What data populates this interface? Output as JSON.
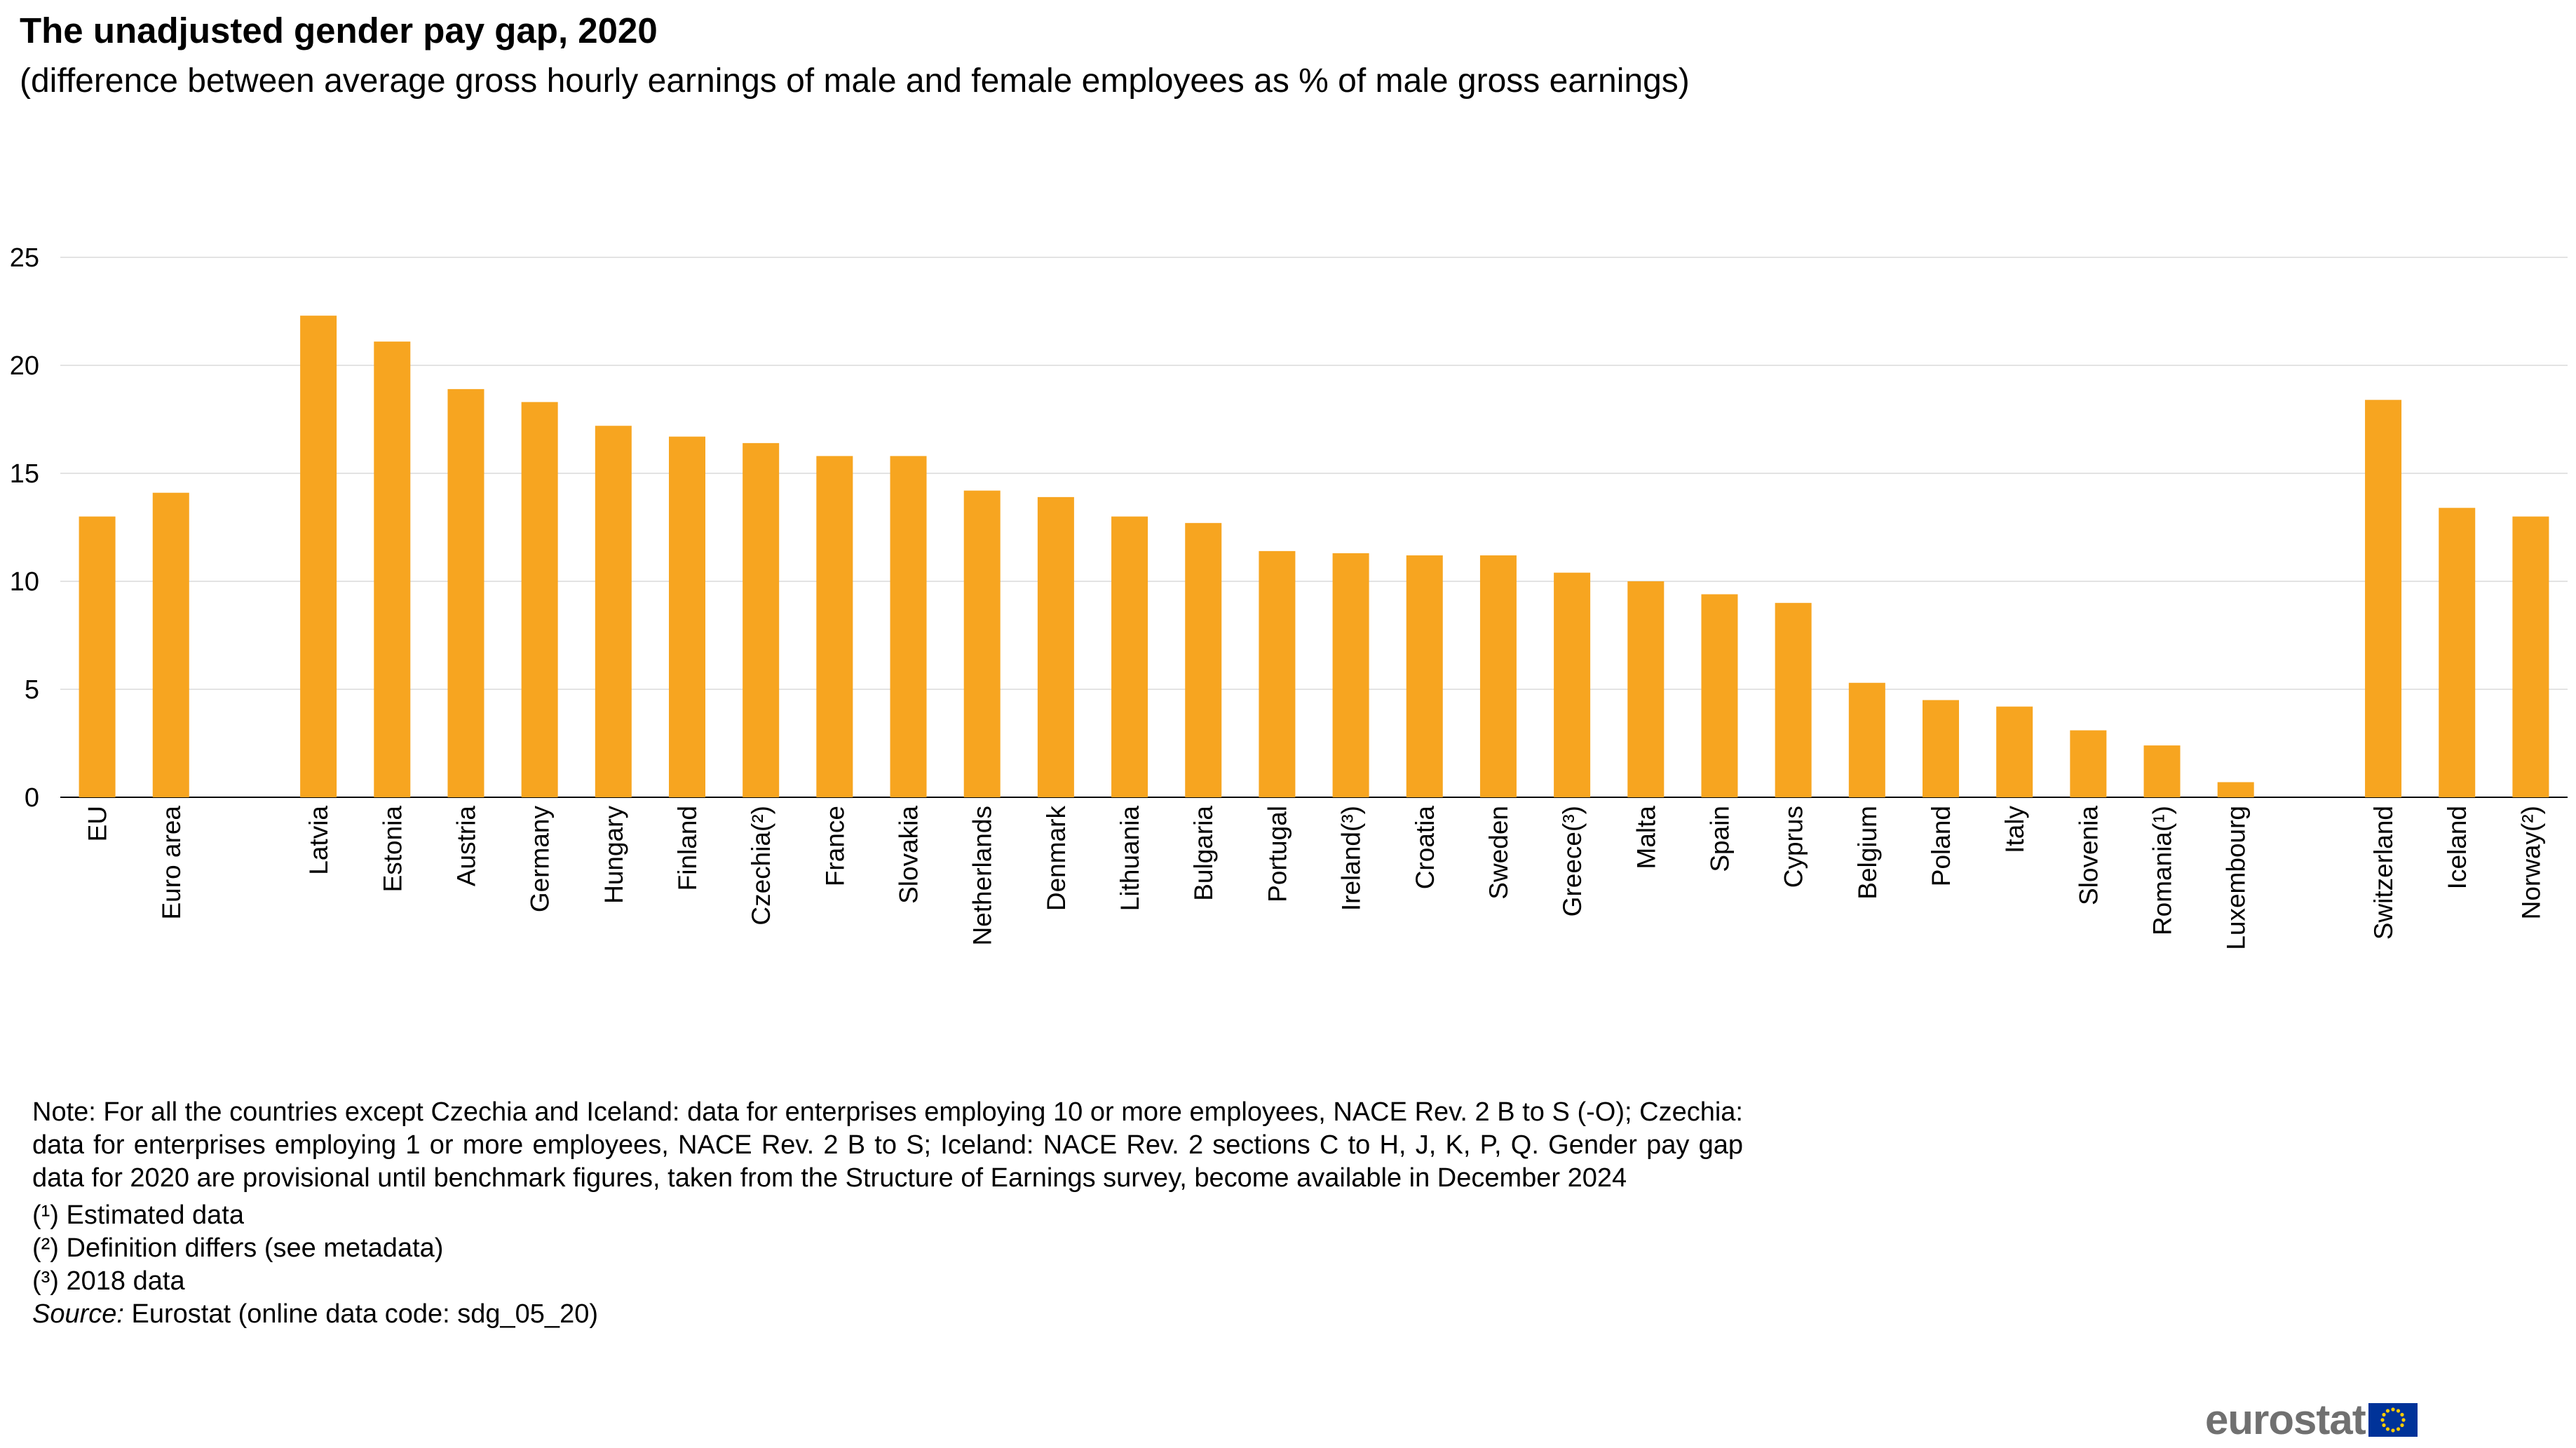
{
  "title": "The unadjusted gender pay gap, 2020",
  "subtitle": "(difference between average gross hourly earnings of male and female employees as % of male gross earnings)",
  "chart_data": {
    "type": "bar",
    "title": "The unadjusted gender pay gap, 2020",
    "subtitle": "(difference between average gross hourly earnings of male and female employees as % of male gross earnings)",
    "xlabel": "",
    "ylabel": "",
    "ylim": [
      0,
      25
    ],
    "yticks": [
      0,
      5,
      10,
      15,
      20,
      25
    ],
    "grid": true,
    "legend": "none",
    "bar_color": "#F7A520",
    "categories": [
      "EU",
      "Euro area",
      "",
      "Latvia",
      "Estonia",
      "Austria",
      "Germany",
      "Hungary",
      "Finland",
      "Czechia(²)",
      "France",
      "Slovakia",
      "Netherlands",
      "Denmark",
      "Lithuania",
      "Bulgaria",
      "Portugal",
      "Ireland(³)",
      "Croatia",
      "Sweden",
      "Greece(³)",
      "Malta",
      "Spain",
      "Cyprus",
      "Belgium",
      "Poland",
      "Italy",
      "Slovenia",
      "Romania(¹)",
      "Luxembourg",
      "",
      "Switzerland",
      "Iceland",
      "Norway(²)"
    ],
    "values": [
      13.0,
      14.1,
      null,
      22.3,
      21.1,
      18.9,
      18.3,
      17.2,
      16.7,
      16.4,
      15.8,
      15.8,
      14.2,
      13.9,
      13.0,
      12.7,
      11.4,
      11.3,
      11.2,
      11.2,
      10.4,
      10.0,
      9.4,
      9.0,
      5.3,
      4.5,
      4.2,
      3.1,
      2.4,
      0.7,
      null,
      18.4,
      13.4,
      13.0
    ]
  },
  "notes": {
    "main": "Note: For all the countries except Czechia and Iceland: data for enterprises employing 10 or more employees, NACE Rev. 2 B to S (-O); Czechia: data for enterprises employing 1 or more employees, NACE Rev. 2 B to S; Iceland: NACE Rev. 2 sections C to H, J, K, P, Q. Gender pay gap data for 2020 are provisional until benchmark figures, taken from the Structure of Earnings survey, become available in December 2024",
    "footnote1": "(¹) Estimated data",
    "footnote2": "(²) Definition differs (see metadata)",
    "footnote3": "(³) 2018 data",
    "source_label": "Source:",
    "source_text": " Eurostat (online data code: sdg_05_20)"
  },
  "brand": {
    "name": "eurostat",
    "flag_icon": "eu-flag-icon",
    "flag_color": "#003399",
    "star_color": "#FFCC00"
  }
}
